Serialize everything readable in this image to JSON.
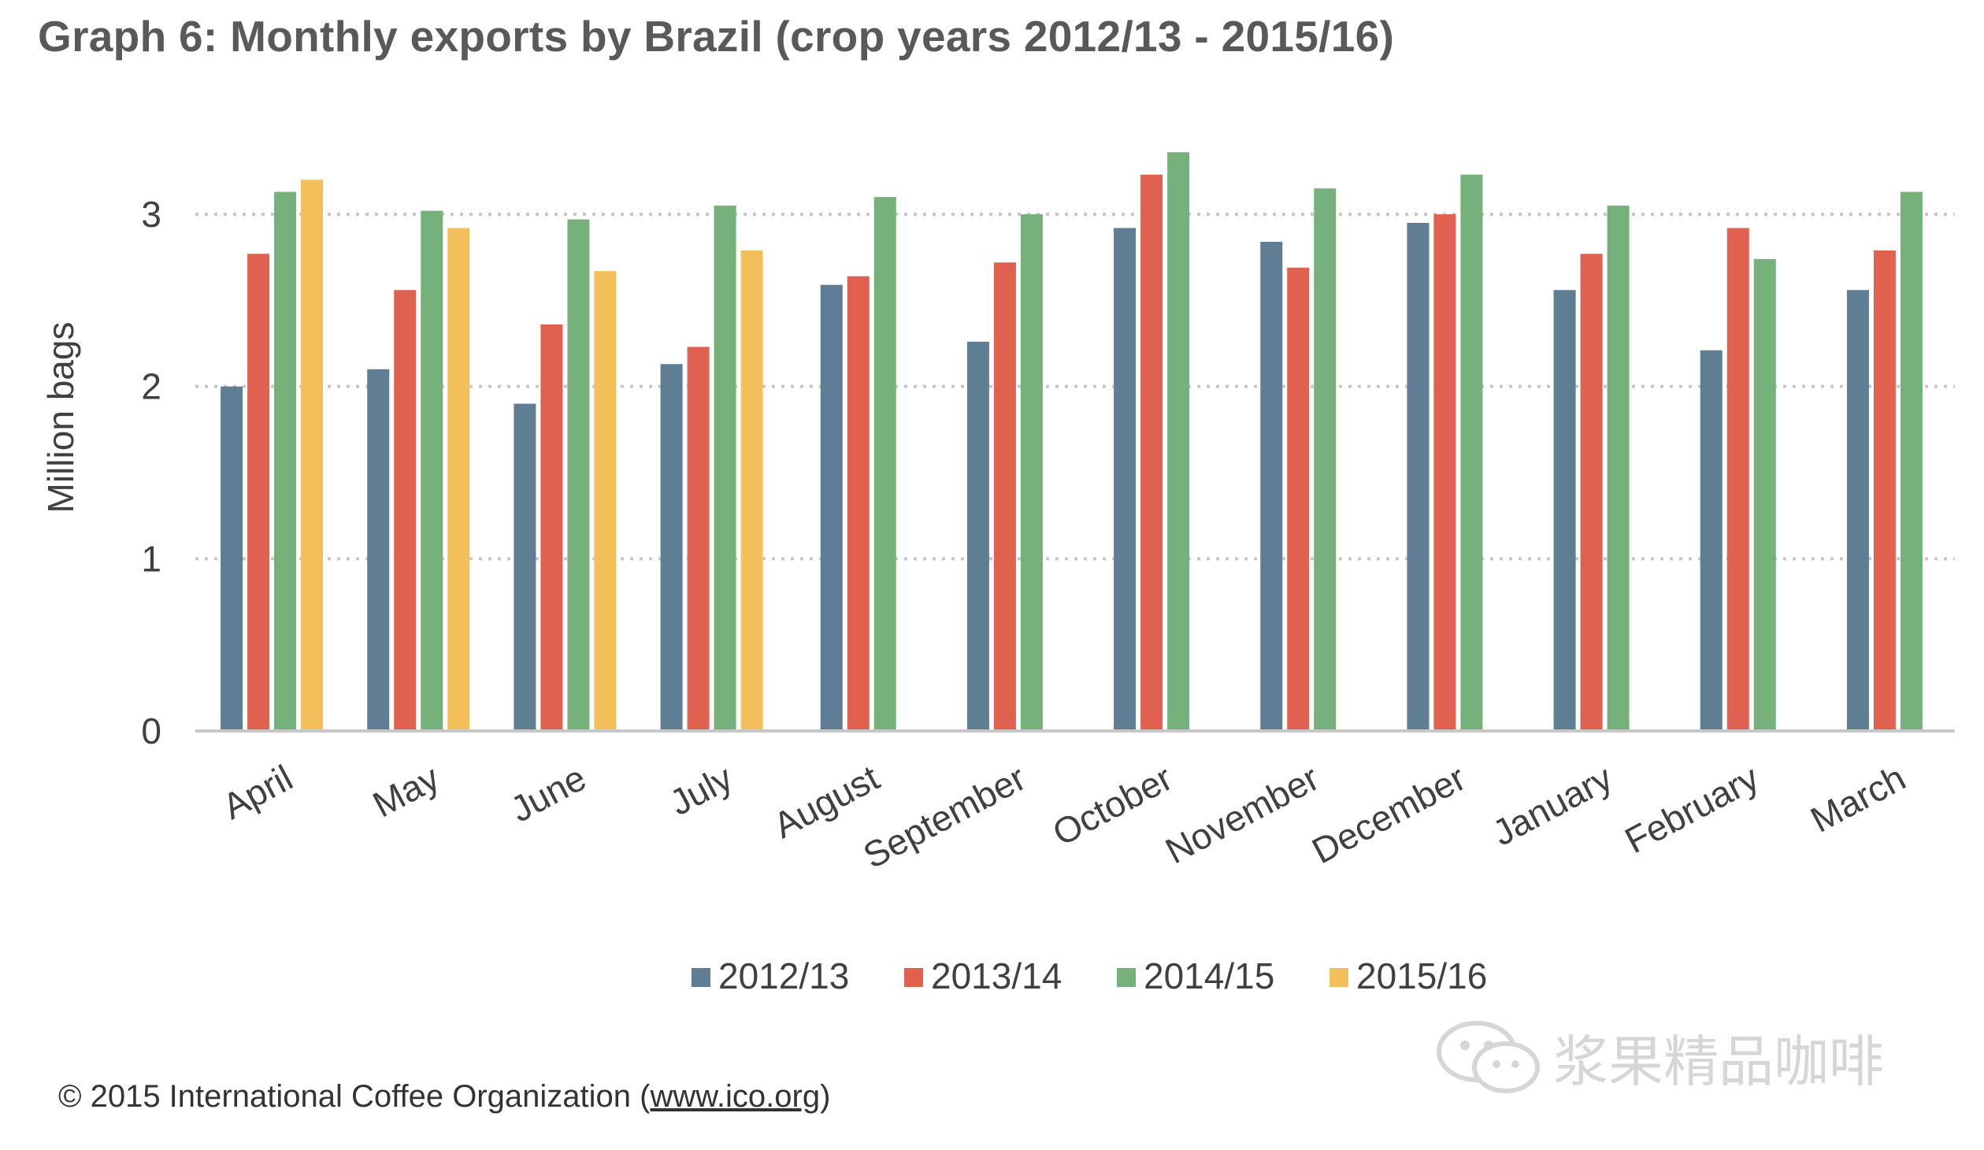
{
  "title": "Graph 6: Monthly exports by Brazil (crop years 2012/13 - 2015/16)",
  "chart_data": {
    "type": "bar",
    "title": "Graph 6: Monthly exports by Brazil (crop years 2012/13 - 2015/16)",
    "xlabel": "",
    "ylabel": "Million bags",
    "ylim": [
      0,
      3.5
    ],
    "yticks": [
      0,
      1,
      2,
      3
    ],
    "grid": true,
    "legend_position": "bottom",
    "categories": [
      "April",
      "May",
      "June",
      "July",
      "August",
      "September",
      "October",
      "November",
      "December",
      "January",
      "February",
      "March"
    ],
    "series": [
      {
        "name": "2012/13",
        "color": "#5f7d93",
        "values": [
          2.0,
          2.1,
          1.9,
          2.13,
          2.59,
          2.26,
          2.92,
          2.84,
          2.95,
          2.56,
          2.21,
          2.56
        ]
      },
      {
        "name": "2013/14",
        "color": "#e0614f",
        "values": [
          2.77,
          2.56,
          2.36,
          2.23,
          2.64,
          2.72,
          3.23,
          2.69,
          3.0,
          2.77,
          2.92,
          2.79
        ]
      },
      {
        "name": "2014/15",
        "color": "#76b17c",
        "values": [
          3.13,
          3.02,
          2.97,
          3.05,
          3.1,
          3.0,
          3.36,
          3.15,
          3.23,
          3.05,
          2.74,
          3.13
        ]
      },
      {
        "name": "2015/16",
        "color": "#f2bf5b",
        "values": [
          3.2,
          2.92,
          2.67,
          2.79,
          null,
          null,
          null,
          null,
          null,
          null,
          null,
          null
        ]
      }
    ]
  },
  "footer": {
    "copyright": "© 2015  International  Coffee  Organization  (",
    "url": "www.ico.org",
    "close": ")"
  },
  "watermark": {
    "text": "浆果精品咖啡",
    "icon": "wechat-icon"
  }
}
